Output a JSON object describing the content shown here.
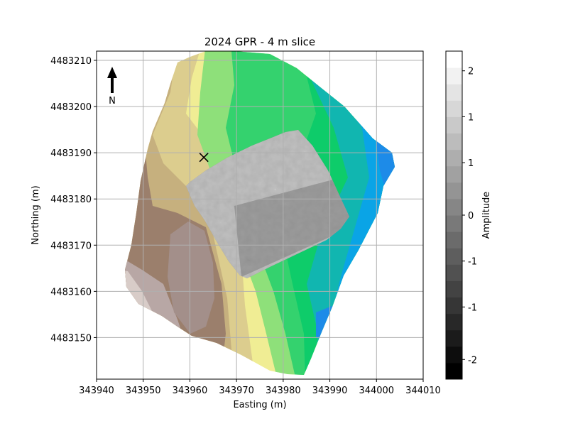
{
  "chart_data": {
    "type": "heatmap",
    "title": "2024 GPR - 4 m slice",
    "xlabel": "Easting (m)",
    "ylabel": "Northing (m)",
    "xlim": [
      343940,
      344010
    ],
    "ylim": [
      4483141,
      4483212
    ],
    "x_ticks": [
      "343940",
      "343950",
      "343960",
      "343970",
      "343980",
      "343990",
      "344000",
      "344010"
    ],
    "y_ticks": [
      "4483210",
      "4483200",
      "4483190",
      "4483180",
      "4483170",
      "4483160",
      "4483150"
    ],
    "grid": true,
    "north_arrow_label": "N",
    "marker": {
      "symbol": "x",
      "easting": 343963,
      "northing": 4483189
    },
    "colorbar": {
      "label": "Amplitude",
      "tick_labels": [
        "2",
        "1",
        "1",
        "0",
        "-1",
        "-1",
        "-2"
      ],
      "tick_values": [
        2.2,
        1.5,
        0.8,
        0.0,
        -0.7,
        -1.4,
        -2.2
      ],
      "range": [
        -2.5,
        2.5
      ],
      "colormap": "gray"
    },
    "terrain_colors": {
      "high": "#a38f8a",
      "brown": "#9b7f6c",
      "tan": "#c6b07e",
      "sand": "#dccd8e",
      "yellow": "#f0ed94",
      "lightgreen": "#8ee07a",
      "green": "#34d26e",
      "deepgreen": "#0ecc6a",
      "teal": "#11b6b0",
      "cyan": "#0aa4e6",
      "blue": "#1d8be8"
    }
  }
}
